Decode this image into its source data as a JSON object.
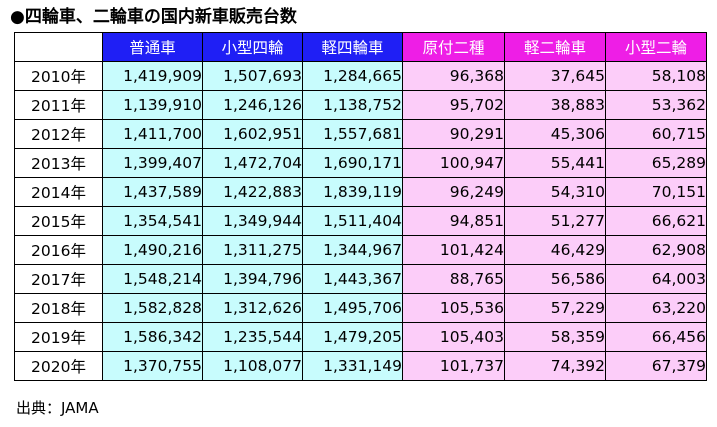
{
  "title": "●四輪車、二輪車の国内新車販売台数",
  "colors": {
    "four_wheel_header": "#1f1ff5",
    "two_wheel_header": "#ee1ee6",
    "four_wheel_cell": "#c8fcfd",
    "two_wheel_cell": "#fccdf9"
  },
  "table": {
    "columns": [
      "普通車",
      "小型四輪",
      "軽四輪車",
      "原付二種",
      "軽二輪車",
      "小型二輪"
    ],
    "rows": [
      {
        "year": "2010年",
        "values": [
          "1,419,909",
          "1,507,693",
          "1,284,665",
          "96,368",
          "37,645",
          "58,108"
        ]
      },
      {
        "year": "2011年",
        "values": [
          "1,139,910",
          "1,246,126",
          "1,138,752",
          "95,702",
          "38,883",
          "53,362"
        ]
      },
      {
        "year": "2012年",
        "values": [
          "1,411,700",
          "1,602,951",
          "1,557,681",
          "90,291",
          "45,306",
          "60,715"
        ]
      },
      {
        "year": "2013年",
        "values": [
          "1,399,407",
          "1,472,704",
          "1,690,171",
          "100,947",
          "55,441",
          "65,289"
        ]
      },
      {
        "year": "2014年",
        "values": [
          "1,437,589",
          "1,422,883",
          "1,839,119",
          "96,249",
          "54,310",
          "70,151"
        ]
      },
      {
        "year": "2015年",
        "values": [
          "1,354,541",
          "1,349,944",
          "1,511,404",
          "94,851",
          "51,277",
          "66,621"
        ]
      },
      {
        "year": "2016年",
        "values": [
          "1,490,216",
          "1,311,275",
          "1,344,967",
          "101,424",
          "46,429",
          "62,908"
        ]
      },
      {
        "year": "2017年",
        "values": [
          "1,548,214",
          "1,394,796",
          "1,443,367",
          "88,765",
          "56,586",
          "64,003"
        ]
      },
      {
        "year": "2018年",
        "values": [
          "1,582,828",
          "1,312,626",
          "1,495,706",
          "105,536",
          "57,229",
          "63,220"
        ]
      },
      {
        "year": "2019年",
        "values": [
          "1,586,342",
          "1,235,544",
          "1,479,205",
          "105,403",
          "58,359",
          "66,456"
        ]
      },
      {
        "year": "2020年",
        "values": [
          "1,370,755",
          "1,108,077",
          "1,331,149",
          "101,737",
          "74,392",
          "67,379"
        ]
      }
    ]
  },
  "source": "出典：JAMA"
}
